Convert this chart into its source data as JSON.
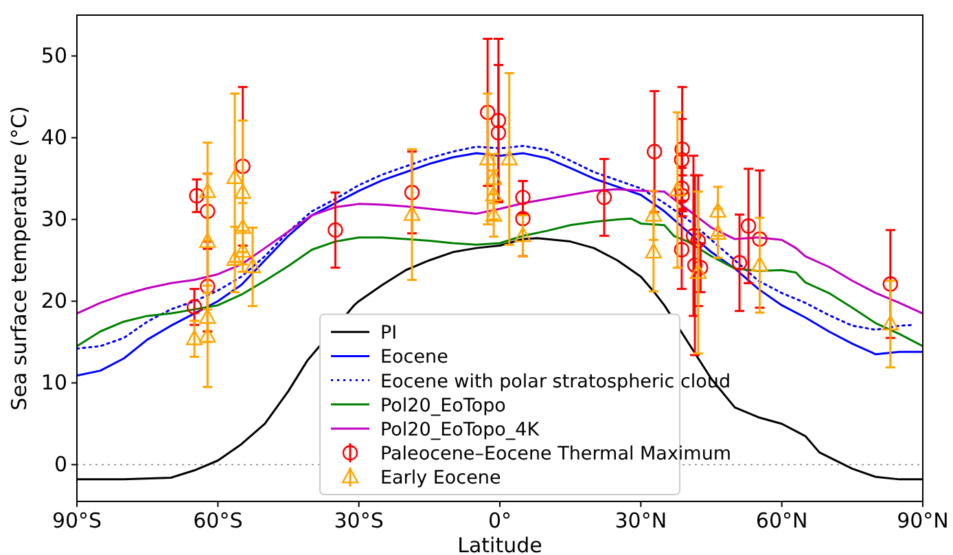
{
  "chart_data": {
    "type": "line",
    "xlabel": "Latitude",
    "ylabel": "Sea surface temperature (°C)",
    "xlim": [
      -90,
      90
    ],
    "xticks": [
      {
        "value": -90,
        "label": "90°S"
      },
      {
        "value": -60,
        "label": "60°S"
      },
      {
        "value": -30,
        "label": "30°S"
      },
      {
        "value": 0,
        "label": "0°"
      },
      {
        "value": 30,
        "label": "30°N"
      },
      {
        "value": 60,
        "label": "60°N"
      },
      {
        "value": 90,
        "label": "90°N"
      }
    ],
    "ylim": [
      -4.5,
      55
    ],
    "yticks": [
      0,
      10,
      20,
      30,
      40,
      50
    ],
    "grid": false,
    "legend": "bottom",
    "ref_lines": [
      {
        "axis": "y",
        "value": 0,
        "color": "#808080",
        "line_style": "dotted"
      }
    ],
    "series": [
      {
        "name": "PI",
        "color": "#000000",
        "line_style": "solid",
        "marker": "none",
        "x": [
          -90,
          -80,
          -70,
          -65,
          -60,
          -55,
          -50,
          -45,
          -41,
          -31,
          -30,
          -25,
          -20,
          -15,
          -10,
          -5,
          0,
          5,
          8,
          15,
          20,
          25,
          30,
          33,
          35,
          40,
          45,
          50,
          55,
          60,
          65,
          68,
          75,
          80,
          85,
          90
        ],
        "values": [
          -1.8,
          -1.8,
          -1.6,
          -0.7,
          0.5,
          2.5,
          5,
          9,
          12.7,
          19.5,
          20,
          22,
          23.8,
          25,
          26,
          26.5,
          26.8,
          27.6,
          27.7,
          27.3,
          26.5,
          25,
          23,
          21,
          19.5,
          15,
          10.5,
          7,
          5.8,
          5,
          3.5,
          1.5,
          -0.5,
          -1.5,
          -1.8,
          -1.8
        ]
      },
      {
        "name": "Eocene",
        "color": "#0000ff",
        "line_style": "solid",
        "marker": "none",
        "x": [
          -90,
          -85,
          -80,
          -75,
          -70,
          -65,
          -60,
          -55,
          -50,
          -45,
          -40,
          -35,
          -30,
          -25,
          -20,
          -15,
          -10,
          -5,
          0,
          5,
          10,
          15,
          20,
          25,
          30,
          35,
          40,
          45,
          50,
          55,
          60,
          65,
          70,
          75,
          80,
          85,
          90
        ],
        "values": [
          10.9,
          11.5,
          13,
          15.3,
          17,
          18.5,
          20,
          22,
          25,
          28,
          30.5,
          32,
          33.5,
          34.8,
          35.8,
          36.8,
          37.6,
          38.1,
          37.8,
          38.1,
          37.5,
          36.3,
          35,
          34,
          33,
          31,
          28.5,
          26,
          24,
          21.5,
          19.5,
          18,
          16.3,
          14.8,
          13.5,
          13.8,
          13.8
        ]
      },
      {
        "name": "Eocene with polar stratospheric cloud",
        "color": "#0000ff",
        "line_style": "dotted",
        "marker": "none",
        "x": [
          -90,
          -85,
          -80,
          -75,
          -70,
          -65,
          -60,
          -55,
          -50,
          -45,
          -40,
          -35,
          -30,
          -25,
          -20,
          -15,
          -10,
          -5,
          0,
          5,
          10,
          15,
          20,
          25,
          30,
          35,
          40,
          45,
          50,
          55,
          60,
          65,
          70,
          75,
          80,
          85,
          88
        ],
        "values": [
          14.2,
          14.5,
          15.5,
          17.5,
          19,
          20,
          21.3,
          23,
          25.5,
          28.5,
          31,
          32.5,
          34.2,
          35.5,
          36.5,
          37.5,
          38.3,
          38.9,
          38.7,
          39,
          38.5,
          37.2,
          35.8,
          34.8,
          33.8,
          32,
          30,
          27.5,
          25,
          22.5,
          21,
          19.8,
          18.3,
          17,
          16.5,
          17,
          17.1
        ]
      },
      {
        "name": "Pol20_EoTopo",
        "color": "#008000",
        "line_style": "solid",
        "marker": "none",
        "x": [
          -90,
          -85,
          -80,
          -75,
          -70,
          -65,
          -60,
          -55,
          -50,
          -45,
          -40,
          -35,
          -30,
          -25,
          -20,
          -15,
          -10,
          -5,
          0,
          5,
          10,
          15,
          20,
          25,
          28,
          30,
          35,
          37,
          40,
          45,
          50,
          55,
          60,
          63,
          65,
          70,
          75,
          80,
          85,
          90
        ],
        "values": [
          14.5,
          16.3,
          17.5,
          18.2,
          18.5,
          19,
          19.5,
          20.8,
          22.5,
          24.3,
          26.3,
          27.3,
          27.8,
          27.8,
          27.6,
          27.4,
          27.1,
          26.9,
          27.1,
          28,
          28.6,
          29.3,
          29.7,
          30,
          30.1,
          29.5,
          29.3,
          28,
          27.3,
          25.5,
          24,
          23.7,
          23.8,
          23.5,
          22.3,
          21,
          19.2,
          17.3,
          16,
          14.5
        ]
      },
      {
        "name": "Pol20_EoTopo_4K",
        "color": "#c000c0",
        "line_style": "solid",
        "marker": "none",
        "x": [
          -90,
          -85,
          -80,
          -75,
          -70,
          -65,
          -60,
          -55,
          -50,
          -45,
          -40,
          -35,
          -30,
          -25,
          -20,
          -15,
          -10,
          -5,
          0,
          5,
          10,
          15,
          20,
          25,
          30,
          35,
          37,
          40,
          45,
          50,
          55,
          60,
          63,
          65,
          70,
          75,
          80,
          85,
          90
        ],
        "values": [
          18.5,
          19.8,
          20.8,
          21.6,
          22.2,
          22.6,
          23.3,
          24.5,
          26.5,
          28.5,
          30.5,
          31.5,
          31.9,
          31.8,
          31.6,
          31.3,
          31,
          30.7,
          31.3,
          32,
          32.5,
          33,
          33.5,
          33.7,
          33.5,
          33.4,
          32.5,
          31.2,
          29,
          27.6,
          27.8,
          27.5,
          26.5,
          25.5,
          24.2,
          22.5,
          21,
          19.8,
          18.5
        ]
      },
      {
        "name": "Paleocene–Eocene Thermal Maximum",
        "type": "scatter",
        "color": "#ff0000",
        "marker": "circle",
        "x": [
          -64.5,
          -62.2,
          -62.2,
          -65,
          -54.7,
          -35,
          -18.7,
          -2.6,
          -0.3,
          -0.3,
          4.9,
          4.9,
          22.2,
          32.9,
          38.8,
          38.7,
          38.7,
          38.8,
          38.7,
          41.2,
          42.2,
          41.5,
          42.7,
          51,
          52.9,
          55.3,
          83.1
        ],
        "values": [
          32.9,
          31,
          21.8,
          19.3,
          36.5,
          28.7,
          33.3,
          43.1,
          42.1,
          40.6,
          32.7,
          30.1,
          32.7,
          38.3,
          38.6,
          37.3,
          33.8,
          32.9,
          26.3,
          28,
          27.4,
          24.4,
          24.1,
          24.7,
          29.2,
          27.6,
          22.1
        ],
        "errors": [
          2,
          4.6,
          5.5,
          2.2,
          9.7,
          4.6,
          5,
          9,
          10,
          8.3,
          2,
          4.6,
          4.7,
          7.4,
          7.6,
          5,
          2.5,
          2.5,
          4.8,
          9.8,
          8,
          11,
          3,
          5.9,
          7,
          8.4,
          6.6
        ]
      },
      {
        "name": "Early Eocene",
        "type": "scatter",
        "color": "#ffa500",
        "marker": "triangle",
        "x": [
          -65,
          -62.2,
          -62.2,
          -62.2,
          -62.2,
          -56.4,
          -54.7,
          -54.7,
          -54.7,
          -56.4,
          -52.6,
          -18.7,
          -2.6,
          -1.3,
          -1.3,
          -1.3,
          2,
          4.9,
          32.7,
          32.7,
          37.8,
          42.2,
          46.4,
          46.4,
          55.3,
          83.1
        ],
        "values": [
          15.4,
          15.7,
          18,
          27.3,
          33.4,
          35.1,
          33.3,
          29,
          26.1,
          25.1,
          24.2,
          30.6,
          37.4,
          35,
          33,
          30.5,
          37.4,
          28,
          30.5,
          26,
          33.6,
          23.5,
          31,
          28.3,
          24.4,
          17.2
        ],
        "errors": [
          2.2,
          6.2,
          3,
          8.3,
          6,
          10.3,
          8.8,
          3,
          2.5,
          4,
          4.8,
          8,
          8,
          3,
          3,
          2.6,
          10.5,
          2.5,
          3,
          4.8,
          9.5,
          9.9,
          3,
          3,
          5.8,
          5.3
        ]
      }
    ]
  }
}
